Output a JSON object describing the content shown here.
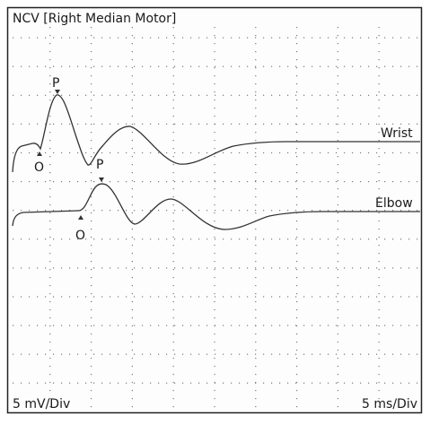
{
  "title": "NCV [Right Median Motor]",
  "traces": [
    {
      "label": "Wrist",
      "peak_marker": "P",
      "onset_marker": "O"
    },
    {
      "label": "Elbow",
      "peak_marker": "P",
      "onset_marker": "O"
    }
  ],
  "footer": {
    "amplitude_scale": "5 mV/Div",
    "time_scale": "5 ms/Div"
  }
}
